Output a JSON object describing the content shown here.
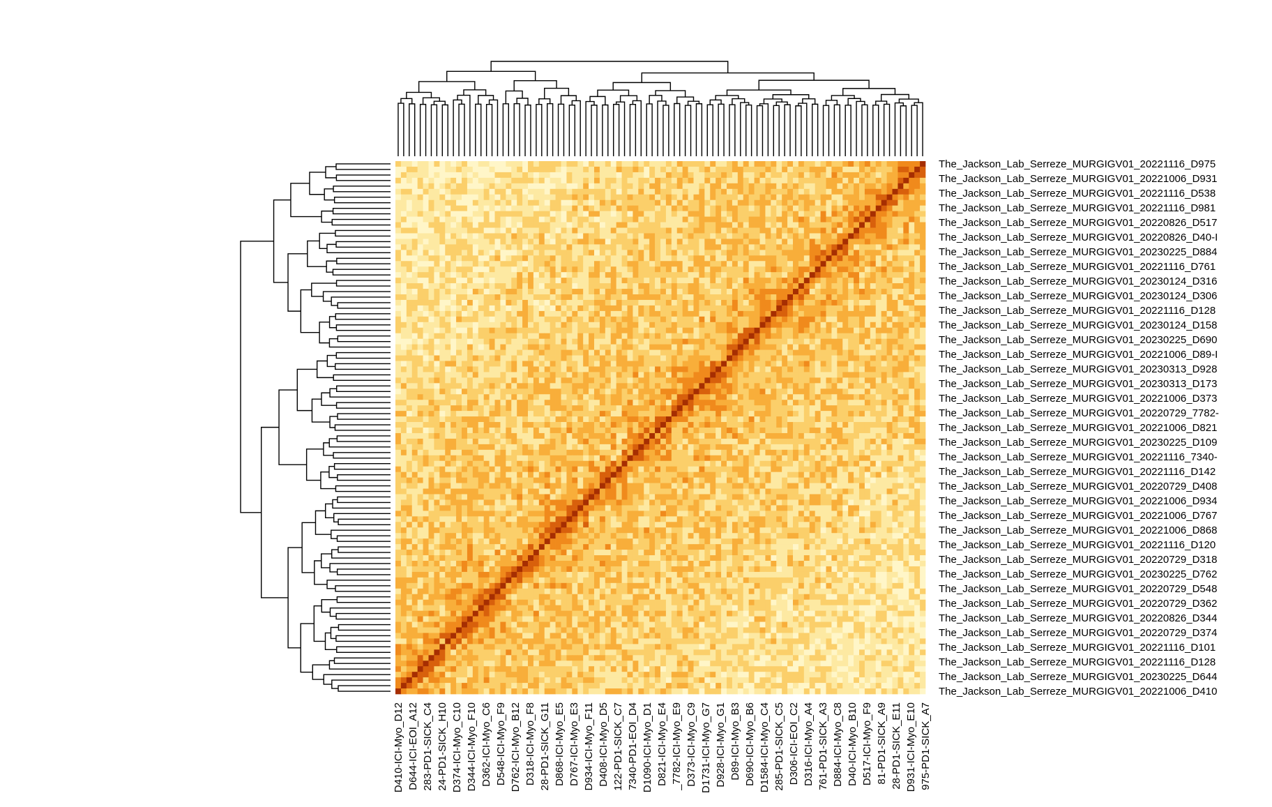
{
  "chart_data": {
    "type": "heatmap",
    "title": "",
    "xlabel": "",
    "ylabel": "",
    "n": 96,
    "color_scale": [
      "#fff6c8",
      "#fde9a2",
      "#fbcf6a",
      "#f8ae3a",
      "#f08a1c",
      "#d8600c",
      "#a62e02"
    ],
    "diagonal_color": "#a62e02",
    "row_labels": [
      "The_Jackson_Lab_Serreze_MURGIGV01_20221116_D975",
      "The_Jackson_Lab_Serreze_MURGIGV01_20221006_D931",
      "The_Jackson_Lab_Serreze_MURGIGV01_20221116_D538",
      "The_Jackson_Lab_Serreze_MURGIGV01_20221116_D981",
      "The_Jackson_Lab_Serreze_MURGIGV01_20220826_D517",
      "The_Jackson_Lab_Serreze_MURGIGV01_20220826_D40-I",
      "The_Jackson_Lab_Serreze_MURGIGV01_20230225_D884",
      "The_Jackson_Lab_Serreze_MURGIGV01_20221116_D761",
      "The_Jackson_Lab_Serreze_MURGIGV01_20230124_D316",
      "The_Jackson_Lab_Serreze_MURGIGV01_20230124_D306",
      "The_Jackson_Lab_Serreze_MURGIGV01_20221116_D128",
      "The_Jackson_Lab_Serreze_MURGIGV01_20230124_D158",
      "The_Jackson_Lab_Serreze_MURGIGV01_20230225_D690",
      "The_Jackson_Lab_Serreze_MURGIGV01_20221006_D89-I",
      "The_Jackson_Lab_Serreze_MURGIGV01_20230313_D928",
      "The_Jackson_Lab_Serreze_MURGIGV01_20230313_D173",
      "The_Jackson_Lab_Serreze_MURGIGV01_20221006_D373",
      "The_Jackson_Lab_Serreze_MURGIGV01_20220729_7782-",
      "The_Jackson_Lab_Serreze_MURGIGV01_20221006_D821",
      "The_Jackson_Lab_Serreze_MURGIGV01_20230225_D109",
      "The_Jackson_Lab_Serreze_MURGIGV01_20221116_7340-",
      "The_Jackson_Lab_Serreze_MURGIGV01_20221116_D142",
      "The_Jackson_Lab_Serreze_MURGIGV01_20220729_D408",
      "The_Jackson_Lab_Serreze_MURGIGV01_20221006_D934",
      "The_Jackson_Lab_Serreze_MURGIGV01_20221006_D767",
      "The_Jackson_Lab_Serreze_MURGIGV01_20221006_D868",
      "The_Jackson_Lab_Serreze_MURGIGV01_20221116_D120",
      "The_Jackson_Lab_Serreze_MURGIGV01_20220729_D318",
      "The_Jackson_Lab_Serreze_MURGIGV01_20230225_D762",
      "The_Jackson_Lab_Serreze_MURGIGV01_20220729_D548",
      "The_Jackson_Lab_Serreze_MURGIGV01_20220729_D362",
      "The_Jackson_Lab_Serreze_MURGIGV01_20220826_D344",
      "The_Jackson_Lab_Serreze_MURGIGV01_20220729_D374",
      "The_Jackson_Lab_Serreze_MURGIGV01_20221116_D101",
      "The_Jackson_Lab_Serreze_MURGIGV01_20221116_D128",
      "The_Jackson_Lab_Serreze_MURGIGV01_20230225_D644",
      "The_Jackson_Lab_Serreze_MURGIGV01_20221006_D410"
    ],
    "column_labels": [
      "D410-ICI-Myo_D12",
      "D644-ICI-EOI_A12",
      "283-PD1-SICK_C4",
      "24-PD1-SICK_H10",
      "D374-ICI-Myo_C10",
      "D344-ICI-Myo_F10",
      "D362-ICI-Myo_C6",
      "D548-ICI-Myo_F9",
      "D762-ICI-Myo_B12",
      "D318-ICI-Myo_F8",
      "28-PD1-SICK_G11",
      "D868-ICI-Myo_E5",
      "D767-ICI-Myo_E3",
      "D934-ICI-Myo_F11",
      "D408-ICI-Myo_D5",
      "122-PD1-SICK_C7",
      "7340-PD1-EOI_D4",
      "D1090-ICI-Myo_D1",
      "D821-ICI-Myo_E4",
      "_7782-ICI-Myo_E9",
      "D373-ICI-Myo_C9",
      "D1731-ICI-Myo_G7",
      "D928-ICI-Myo_G1",
      "D89-ICI-Myo_B3",
      "D690-ICI-Myo_B6",
      "D1584-ICI-Myo_C4",
      "285-PD1-SICK_C5",
      "D306-ICI-EOI_C2",
      "D316-ICI-Myo_A4",
      "761-PD1-SICK_A3",
      "D884-ICI-Myo_C8",
      "D40-ICI-Myo_B10",
      "D517-ICI-Myo_F9",
      "81-PD1-SICK_A9",
      "28-PD1-SICK_E11",
      "D931-ICI-Myo_E10",
      "975-PD1-SICK_A7"
    ]
  }
}
